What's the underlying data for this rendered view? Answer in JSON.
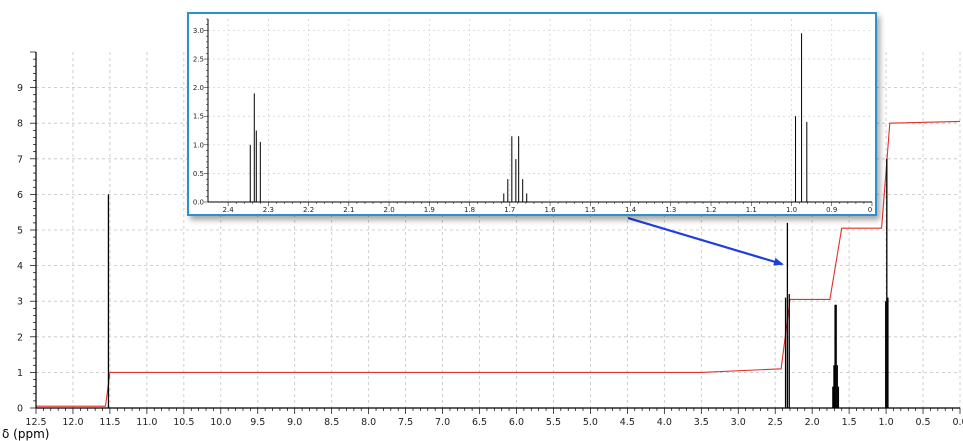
{
  "chart_data": [
    {
      "type": "line",
      "xlabel": "δ (ppm)",
      "x_ticks": [
        "12.5",
        "12.0",
        "11.5",
        "11.0",
        "10.5",
        "10.0",
        "9.5",
        "9.0",
        "8.5",
        "8.0",
        "7.5",
        "7.0",
        "6.5",
        "6.0",
        "5.5",
        "5.0",
        "4.5",
        "4.0",
        "3.5",
        "3.0",
        "2.5",
        "2.0",
        "1.5",
        "1.0",
        "0.5",
        "0.0"
      ],
      "y_ticks": [
        "0",
        "1",
        "2",
        "3",
        "4",
        "5",
        "6",
        "7",
        "8",
        "9"
      ],
      "xlim": [
        12.5,
        0.0
      ],
      "ylim": [
        0,
        10
      ],
      "grid": true,
      "x_axis_reversed": true,
      "spectrum": {
        "color": "#000000",
        "peaks": [
          {
            "shift": 11.52,
            "height": 6.0
          },
          {
            "shift": 2.36,
            "height": 3.1
          },
          {
            "shift": 2.335,
            "height": 5.2
          },
          {
            "shift": 2.31,
            "height": 3.2
          },
          {
            "shift": 1.72,
            "height": 0.6
          },
          {
            "shift": 1.705,
            "height": 1.2
          },
          {
            "shift": 1.69,
            "height": 2.9
          },
          {
            "shift": 1.675,
            "height": 2.9
          },
          {
            "shift": 1.66,
            "height": 1.2
          },
          {
            "shift": 1.645,
            "height": 0.6
          },
          {
            "shift": 1.005,
            "height": 3.0
          },
          {
            "shift": 0.99,
            "height": 7.0
          },
          {
            "shift": 0.975,
            "height": 3.1
          }
        ]
      },
      "integral": {
        "color": "#e0322a",
        "points": [
          [
            12.5,
            0.05
          ],
          [
            11.56,
            0.05
          ],
          [
            11.5,
            1.0
          ],
          [
            3.5,
            1.0
          ],
          [
            2.42,
            1.1
          ],
          [
            2.3,
            3.05
          ],
          [
            1.76,
            3.05
          ],
          [
            1.6,
            5.05
          ],
          [
            1.06,
            5.05
          ],
          [
            0.95,
            8.0
          ],
          [
            0.0,
            8.05
          ]
        ]
      }
    },
    {
      "type": "line",
      "inset": true,
      "x_ticks": [
        "2.4",
        "2.3",
        "2.2",
        "2.1",
        "2.0",
        "1.9",
        "1.8",
        "1.7",
        "1.6",
        "1.5",
        "1.4",
        "1.3",
        "1.2",
        "1.1",
        "1.0",
        "0.9",
        "0"
      ],
      "y_ticks": [
        "0.0",
        "0.5",
        "1.0",
        "1.5",
        "2.0",
        "2.5",
        "3.0"
      ],
      "xlim": [
        2.45,
        0.8
      ],
      "ylim": [
        0,
        3.2
      ],
      "grid": true,
      "border_color": "#2f8fd0",
      "arrow_color": "#1f3ee0",
      "peaks": [
        {
          "shift": 2.345,
          "height": 1.0
        },
        {
          "shift": 2.335,
          "height": 1.9
        },
        {
          "shift": 2.33,
          "height": 1.25
        },
        {
          "shift": 2.32,
          "height": 1.05
        },
        {
          "shift": 1.715,
          "height": 0.15
        },
        {
          "shift": 1.705,
          "height": 0.4
        },
        {
          "shift": 1.695,
          "height": 1.15
        },
        {
          "shift": 1.685,
          "height": 0.75
        },
        {
          "shift": 1.678,
          "height": 1.15
        },
        {
          "shift": 1.668,
          "height": 0.4
        },
        {
          "shift": 1.658,
          "height": 0.15
        },
        {
          "shift": 0.99,
          "height": 1.5
        },
        {
          "shift": 0.975,
          "height": 2.95
        },
        {
          "shift": 0.962,
          "height": 1.4
        }
      ]
    }
  ]
}
